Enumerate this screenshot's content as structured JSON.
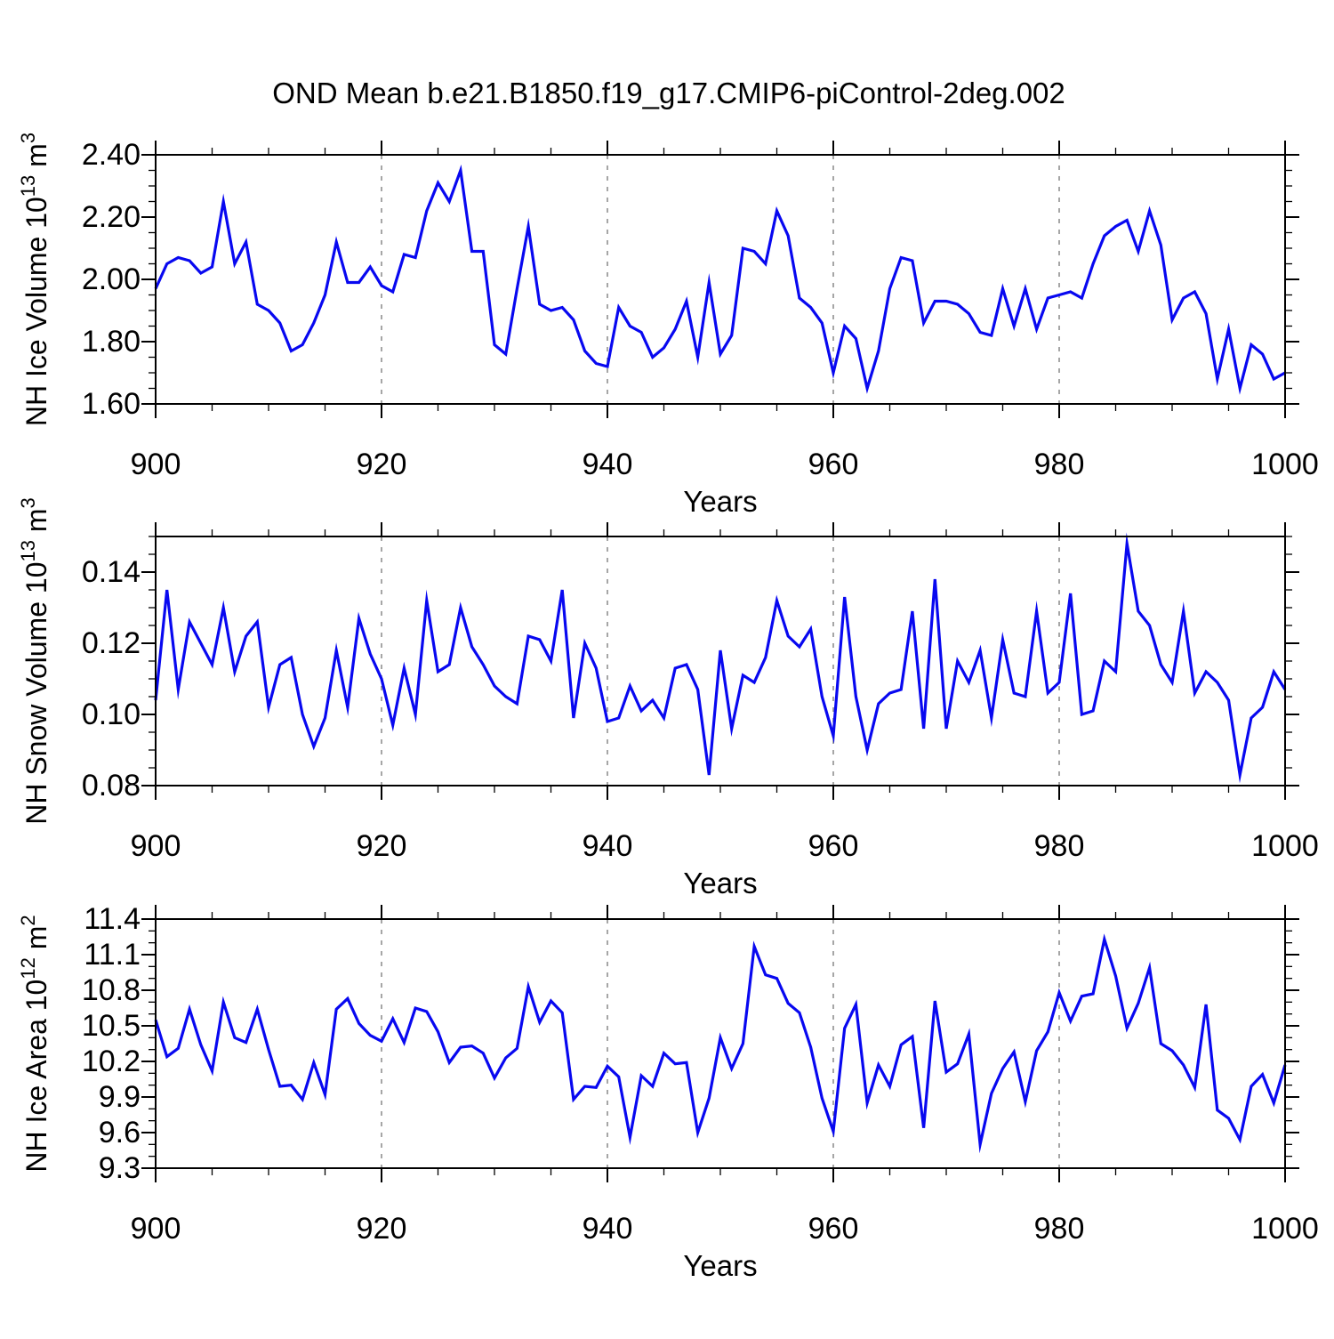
{
  "chart_data": {
    "type": "line",
    "title": "OND Mean b.e21.B1850.f19_g17.CMIP6-piControl-2deg.002",
    "xlabel": "Years",
    "line_color": "#0808f0",
    "grid_color": "#777777",
    "axis_color": "#000000",
    "legend": "none",
    "grid_on": "vertical-dashed-only",
    "xlim": [
      900,
      1000
    ],
    "x_ticks": [
      900,
      920,
      940,
      960,
      980,
      1000
    ],
    "x_tick_labels": [
      "900",
      "920",
      "940",
      "960",
      "980",
      "1000"
    ],
    "x_minor_step": 5,
    "grid_x": [
      920,
      940,
      960,
      980
    ],
    "years": [
      900,
      901,
      902,
      903,
      904,
      905,
      906,
      907,
      908,
      909,
      910,
      911,
      912,
      913,
      914,
      915,
      916,
      917,
      918,
      919,
      920,
      921,
      922,
      923,
      924,
      925,
      926,
      927,
      928,
      929,
      930,
      931,
      932,
      933,
      934,
      935,
      936,
      937,
      938,
      939,
      940,
      941,
      942,
      943,
      944,
      945,
      946,
      947,
      948,
      949,
      950,
      951,
      952,
      953,
      954,
      955,
      956,
      957,
      958,
      959,
      960,
      961,
      962,
      963,
      964,
      965,
      966,
      967,
      968,
      969,
      970,
      971,
      972,
      973,
      974,
      975,
      976,
      977,
      978,
      979,
      980,
      981,
      982,
      983,
      984,
      985,
      986,
      987,
      988,
      989,
      990,
      991,
      992,
      993,
      994,
      995,
      996,
      997,
      998,
      999,
      1000
    ],
    "panels": [
      {
        "name": "nh-ice-volume",
        "ylabel_plain": "NH Ice Volume 10^13 m^3",
        "ylabel_segments": [
          {
            "t": "NH Ice Volume 10",
            "sup": false
          },
          {
            "t": "13",
            "sup": true
          },
          {
            "t": " m",
            "sup": false
          },
          {
            "t": "3",
            "sup": true
          }
        ],
        "ylim": [
          1.6,
          2.4
        ],
        "yticks": [
          1.6,
          1.8,
          2.0,
          2.2,
          2.4
        ],
        "ytick_labels": [
          "1.60",
          "1.80",
          "2.00",
          "2.20",
          "2.40"
        ],
        "y_minor_step": 0.05,
        "values": [
          1.97,
          2.05,
          2.07,
          2.06,
          2.02,
          2.04,
          2.25,
          2.05,
          2.12,
          1.92,
          1.9,
          1.86,
          1.77,
          1.79,
          1.86,
          1.95,
          2.12,
          1.99,
          1.99,
          2.04,
          1.98,
          1.96,
          2.08,
          2.07,
          2.22,
          2.31,
          2.25,
          2.35,
          2.09,
          2.09,
          1.79,
          1.76,
          1.97,
          2.17,
          1.92,
          1.9,
          1.91,
          1.87,
          1.77,
          1.73,
          1.72,
          1.91,
          1.85,
          1.83,
          1.75,
          1.78,
          1.84,
          1.93,
          1.75,
          1.99,
          1.76,
          1.82,
          2.1,
          2.09,
          2.05,
          2.22,
          2.14,
          1.94,
          1.91,
          1.86,
          1.7,
          1.85,
          1.81,
          1.65,
          1.77,
          1.97,
          2.07,
          2.06,
          1.86,
          1.93,
          1.93,
          1.92,
          1.89,
          1.83,
          1.82,
          1.97,
          1.85,
          1.97,
          1.84,
          1.94,
          1.95,
          1.96,
          1.94,
          2.05,
          2.14,
          2.17,
          2.19,
          2.09,
          2.22,
          2.11,
          1.87,
          1.94,
          1.96,
          1.89,
          1.68,
          1.84,
          1.65,
          1.79,
          1.76,
          1.68,
          1.7
        ]
      },
      {
        "name": "nh-snow-volume",
        "ylabel_plain": "NH Snow Volume 10^13 m^3",
        "ylabel_segments": [
          {
            "t": "NH Snow Volume 10",
            "sup": false
          },
          {
            "t": "13",
            "sup": true
          },
          {
            "t": " m",
            "sup": false
          },
          {
            "t": "3",
            "sup": true
          }
        ],
        "ylim": [
          0.08,
          0.15
        ],
        "yticks": [
          0.08,
          0.1,
          0.12,
          0.14
        ],
        "ytick_labels": [
          "0.08",
          "0.10",
          "0.12",
          "0.14"
        ],
        "y_minor_step": 0.005,
        "values": [
          0.104,
          0.135,
          0.107,
          0.126,
          0.12,
          0.114,
          0.13,
          0.112,
          0.122,
          0.126,
          0.102,
          0.114,
          0.116,
          0.1,
          0.091,
          0.099,
          0.118,
          0.102,
          0.127,
          0.117,
          0.11,
          0.097,
          0.113,
          0.1,
          0.132,
          0.112,
          0.114,
          0.13,
          0.119,
          0.114,
          0.108,
          0.105,
          0.103,
          0.122,
          0.121,
          0.115,
          0.135,
          0.099,
          0.12,
          0.113,
          0.098,
          0.099,
          0.108,
          0.101,
          0.104,
          0.099,
          0.113,
          0.114,
          0.107,
          0.083,
          0.118,
          0.096,
          0.111,
          0.109,
          0.116,
          0.132,
          0.122,
          0.119,
          0.124,
          0.105,
          0.094,
          0.133,
          0.105,
          0.09,
          0.103,
          0.106,
          0.107,
          0.129,
          0.096,
          0.138,
          0.096,
          0.115,
          0.109,
          0.118,
          0.099,
          0.121,
          0.106,
          0.105,
          0.129,
          0.106,
          0.109,
          0.134,
          0.1,
          0.101,
          0.115,
          0.112,
          0.148,
          0.129,
          0.125,
          0.114,
          0.109,
          0.129,
          0.106,
          0.112,
          0.109,
          0.104,
          0.083,
          0.099,
          0.102,
          0.112,
          0.107
        ]
      },
      {
        "name": "nh-ice-area",
        "ylabel_plain": "NH Ice Area 10^12 m^2",
        "ylabel_segments": [
          {
            "t": "NH Ice Area 10",
            "sup": false
          },
          {
            "t": "12",
            "sup": true
          },
          {
            "t": " m",
            "sup": false
          },
          {
            "t": "2",
            "sup": true
          }
        ],
        "ylim": [
          9.3,
          11.4
        ],
        "yticks": [
          9.3,
          9.6,
          9.9,
          10.2,
          10.5,
          10.8,
          11.1,
          11.4
        ],
        "ytick_labels": [
          "9.3",
          "9.6",
          "9.9",
          "10.2",
          "10.5",
          "10.8",
          "11.1",
          "11.4"
        ],
        "y_minor_step": 0.1,
        "values": [
          10.55,
          10.24,
          10.31,
          10.64,
          10.34,
          10.12,
          10.7,
          10.4,
          10.36,
          10.64,
          10.3,
          9.99,
          10.0,
          9.88,
          10.19,
          9.92,
          10.64,
          10.73,
          10.52,
          10.42,
          10.37,
          10.56,
          10.36,
          10.65,
          10.62,
          10.45,
          10.19,
          10.32,
          10.33,
          10.27,
          10.06,
          10.23,
          10.31,
          10.83,
          10.53,
          10.71,
          10.61,
          9.88,
          9.99,
          9.98,
          10.16,
          10.07,
          9.56,
          10.08,
          9.99,
          10.27,
          10.18,
          10.19,
          9.6,
          9.89,
          10.4,
          10.14,
          10.35,
          11.17,
          10.93,
          10.9,
          10.69,
          10.61,
          10.32,
          9.89,
          9.61,
          10.48,
          10.68,
          9.85,
          10.17,
          9.99,
          10.34,
          10.41,
          9.64,
          10.71,
          10.11,
          10.18,
          10.43,
          9.5,
          9.93,
          10.14,
          10.28,
          9.86,
          10.29,
          10.45,
          10.78,
          10.54,
          10.75,
          10.77,
          11.23,
          10.92,
          10.48,
          10.69,
          10.99,
          10.35,
          10.29,
          10.17,
          9.98,
          10.68,
          9.79,
          9.72,
          9.54,
          9.99,
          10.09,
          9.85,
          10.17
        ]
      }
    ]
  }
}
